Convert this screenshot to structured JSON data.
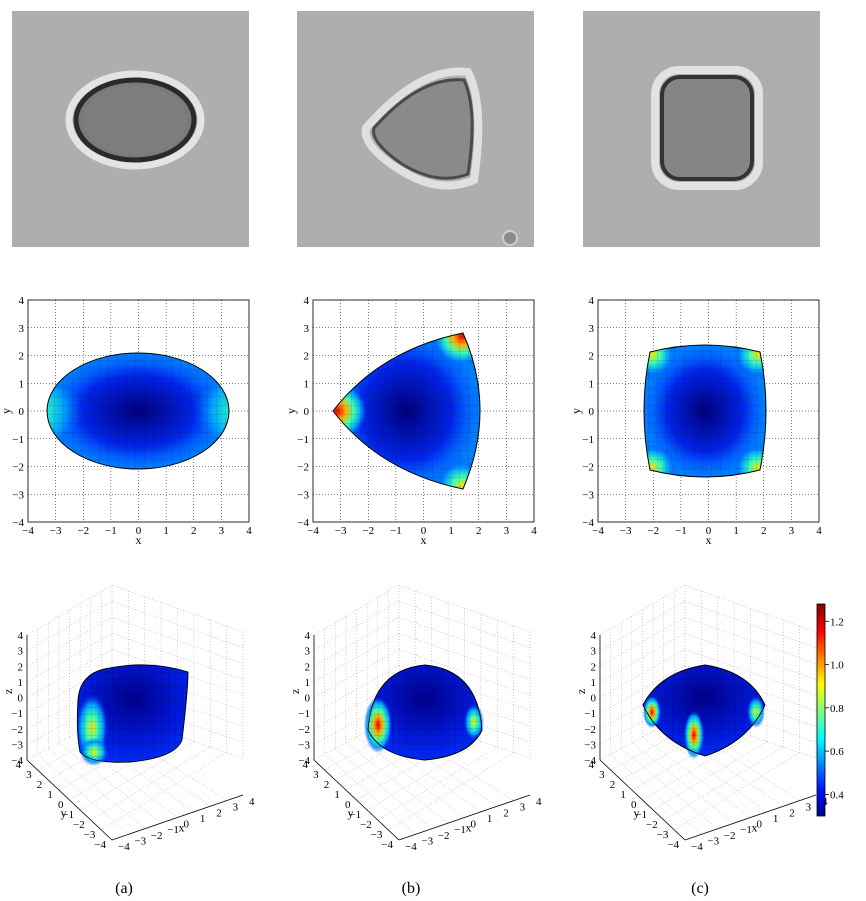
{
  "figure": {
    "colormap": [
      "#00008f",
      "#0020ff",
      "#00a0ff",
      "#10ffef",
      "#80ff80",
      "#ffef00",
      "#ff7000",
      "#e00000",
      "#800000"
    ],
    "photo_shapes": [
      "ellipse",
      "triangle",
      "rounded-square"
    ],
    "captions": [
      "(a)",
      "(b)",
      "(c)"
    ]
  },
  "chart_data": [
    {
      "type": "heatmap",
      "panel": "a-top-view",
      "xlabel": "x",
      "ylabel": "y",
      "xlim": [
        -4,
        4
      ],
      "ylim": [
        -4,
        4
      ],
      "xticks": [
        "−4",
        "−3",
        "−2",
        "−1",
        "0",
        "1",
        "2",
        "3",
        "4"
      ],
      "yticks": [
        "4",
        "3",
        "2",
        "1",
        "0",
        "−1",
        "−2",
        "−3",
        "−4"
      ],
      "shape": "ellipse",
      "grid": true
    },
    {
      "type": "heatmap",
      "panel": "b-top-view",
      "xlabel": "x",
      "ylabel": "y",
      "xlim": [
        -4,
        4
      ],
      "ylim": [
        -4,
        4
      ],
      "xticks": [
        "−4",
        "−3",
        "−2",
        "−1",
        "0",
        "1",
        "2",
        "3",
        "4"
      ],
      "yticks": [
        "4",
        "3",
        "2",
        "1",
        "0",
        "−1",
        "−2",
        "−3",
        "−4"
      ],
      "shape": "triangle",
      "grid": true
    },
    {
      "type": "heatmap",
      "panel": "c-top-view",
      "xlabel": "x",
      "ylabel": "y",
      "xlim": [
        -4,
        4
      ],
      "ylim": [
        -4,
        4
      ],
      "xticks": [
        "−4",
        "−3",
        "−2",
        "−1",
        "0",
        "1",
        "2",
        "3",
        "4"
      ],
      "yticks": [
        "4",
        "3",
        "2",
        "1",
        "0",
        "−1",
        "−2",
        "−3",
        "−4"
      ],
      "shape": "rounded-square",
      "grid": true
    },
    {
      "type": "heatmap",
      "panel": "a-3d-view",
      "xlabel": "x",
      "ylabel": "y",
      "zlabel": "z",
      "zticks": [
        "4",
        "3",
        "2",
        "1",
        "0",
        "−1",
        "−2",
        "−3",
        "−4"
      ],
      "yticks": [
        "4",
        "3",
        "2",
        "1",
        "0",
        "−1",
        "−2",
        "−3",
        "−4"
      ],
      "xticks": [
        "−4",
        "−3",
        "−2",
        "−1",
        "0",
        "1",
        "2",
        "3",
        "4"
      ]
    },
    {
      "type": "heatmap",
      "panel": "b-3d-view",
      "xlabel": "x",
      "ylabel": "y",
      "zlabel": "z",
      "zticks": [
        "4",
        "3",
        "2",
        "1",
        "0",
        "−1",
        "−2",
        "−3",
        "−4"
      ],
      "yticks": [
        "4",
        "3",
        "2",
        "1",
        "0",
        "−1",
        "−2",
        "−3",
        "−4"
      ],
      "xticks": [
        "−4",
        "−3",
        "−2",
        "−1",
        "0",
        "1",
        "2",
        "3",
        "4"
      ]
    },
    {
      "type": "heatmap",
      "panel": "c-3d-view",
      "xlabel": "x",
      "ylabel": "y",
      "zlabel": "z",
      "zticks": [
        "4",
        "3",
        "2",
        "1",
        "0",
        "−1",
        "−2",
        "−3",
        "−4"
      ],
      "yticks": [
        "4",
        "3",
        "2",
        "1",
        "0",
        "−1",
        "−2",
        "−3",
        "−4"
      ],
      "xticks": [
        "−4",
        "−3",
        "−2",
        "−1",
        "0",
        "1",
        "2",
        "3",
        "4"
      ]
    },
    {
      "type": "colorbar",
      "ticks": [
        "1.2",
        "1.0",
        "0.8",
        "0.6",
        "0.4"
      ],
      "range": [
        0.3,
        1.28
      ]
    }
  ]
}
